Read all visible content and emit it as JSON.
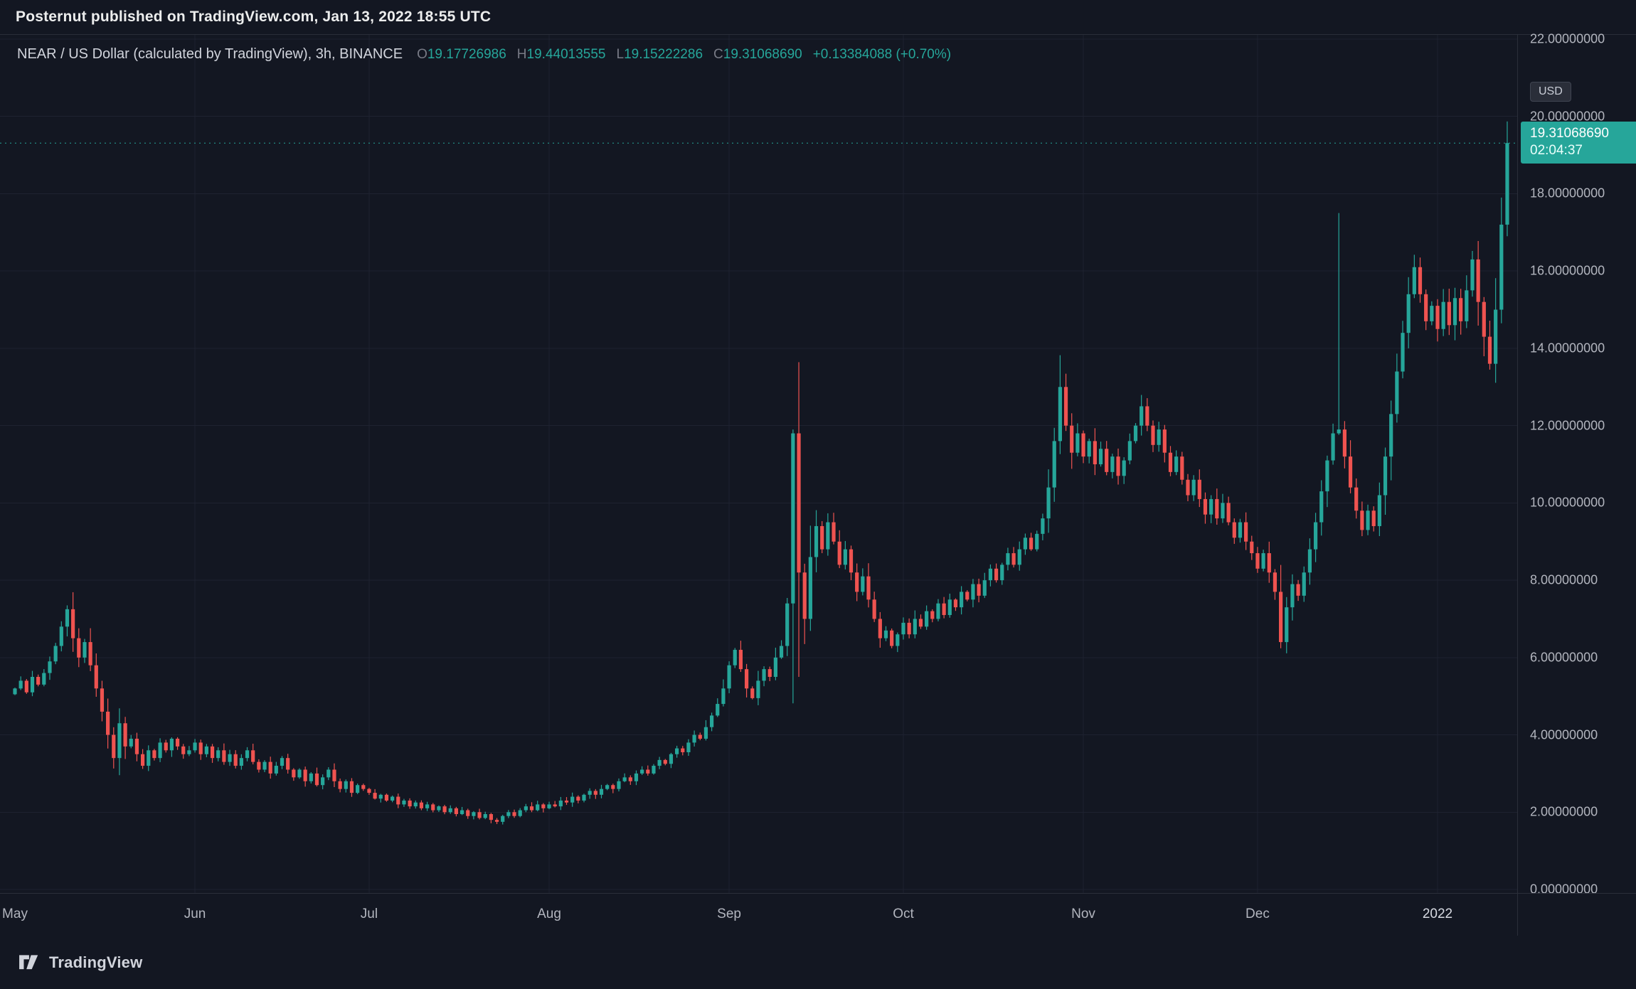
{
  "header": {
    "publish_text": "Posternut published on TradingView.com, Jan 13, 2022 18:55 UTC"
  },
  "chart": {
    "title": "NEAR / US Dollar (calculated by TradingView), 3h, BINANCE",
    "ohlc": {
      "o_label": "O",
      "o": "19.17726986",
      "h_label": "H",
      "h": "19.44013555",
      "l_label": "L",
      "l": "19.15222286",
      "c_label": "C",
      "c": "19.31068690",
      "change": "+0.13384088 (+0.70%)"
    },
    "price_axis": {
      "unit": "USD",
      "labels": [
        "22.00000000",
        "20.00000000",
        "18.00000000",
        "16.00000000",
        "14.00000000",
        "12.00000000",
        "10.00000000",
        "8.00000000",
        "6.00000000",
        "4.00000000",
        "2.00000000",
        "0.00000000"
      ]
    },
    "last_price": {
      "value": "19.31068690",
      "countdown": "02:04:37"
    }
  },
  "footer": {
    "brand": "TradingView"
  },
  "colors": {
    "up": "#26a69a",
    "down": "#ef5350",
    "grid": "#1e2230",
    "background": "#131722",
    "axis_text": "#b2b5be",
    "badge_bg": "#26a69a",
    "last_price_line": "#26a69a"
  },
  "chart_data": {
    "type": "candlestick",
    "symbol": "NEAR/USD",
    "interval": "3h",
    "exchange": "BINANCE",
    "title": "NEAR / US Dollar (calculated by TradingView)",
    "ylim": [
      0,
      22
    ],
    "x_unit": "days from 2021-05-01",
    "months": [
      {
        "label": "May",
        "day": 0
      },
      {
        "label": "Jun",
        "day": 31
      },
      {
        "label": "Jul",
        "day": 61
      },
      {
        "label": "Aug",
        "day": 92
      },
      {
        "label": "Sep",
        "day": 123
      },
      {
        "label": "Oct",
        "day": 153
      },
      {
        "label": "Nov",
        "day": 184
      },
      {
        "label": "Dec",
        "day": 214
      },
      {
        "label": "2022",
        "day": 245,
        "year": true
      }
    ],
    "first_open": 5.05,
    "last_close": 19.3107,
    "closes": [
      5.2,
      5.4,
      5.1,
      5.5,
      5.3,
      5.6,
      5.9,
      6.3,
      6.8,
      7.25,
      6.5,
      6.0,
      6.4,
      5.8,
      5.2,
      4.6,
      4.0,
      3.4,
      4.3,
      3.7,
      3.9,
      3.5,
      3.2,
      3.6,
      3.4,
      3.8,
      3.6,
      3.9,
      3.7,
      3.5,
      3.6,
      3.8,
      3.5,
      3.7,
      3.4,
      3.6,
      3.3,
      3.5,
      3.2,
      3.4,
      3.6,
      3.3,
      3.1,
      3.3,
      3.0,
      3.2,
      3.4,
      3.1,
      2.9,
      3.1,
      2.8,
      3.0,
      2.7,
      2.9,
      3.1,
      2.8,
      2.6,
      2.8,
      2.5,
      2.7,
      2.6,
      2.5,
      2.35,
      2.45,
      2.3,
      2.4,
      2.2,
      2.3,
      2.15,
      2.25,
      2.1,
      2.2,
      2.05,
      2.15,
      2.0,
      2.1,
      1.95,
      2.05,
      1.9,
      2.0,
      1.85,
      1.95,
      1.8,
      1.75,
      1.9,
      2.0,
      1.9,
      2.05,
      2.15,
      2.05,
      2.2,
      2.1,
      2.2,
      2.15,
      2.3,
      2.25,
      2.4,
      2.3,
      2.45,
      2.55,
      2.45,
      2.6,
      2.7,
      2.6,
      2.8,
      2.9,
      2.8,
      3.0,
      3.1,
      3.0,
      3.2,
      3.35,
      3.25,
      3.5,
      3.65,
      3.55,
      3.8,
      4.0,
      3.9,
      4.2,
      4.5,
      4.8,
      5.2,
      5.8,
      6.2,
      5.7,
      5.2,
      4.95,
      5.4,
      5.7,
      5.5,
      6.0,
      6.3,
      7.4,
      11.8,
      8.2,
      7.0,
      8.6,
      9.4,
      8.8,
      9.5,
      9.0,
      8.4,
      8.8,
      8.2,
      7.7,
      8.1,
      7.5,
      7.0,
      6.5,
      6.7,
      6.3,
      6.6,
      6.9,
      6.6,
      7.0,
      6.8,
      7.2,
      7.0,
      7.4,
      7.1,
      7.5,
      7.3,
      7.7,
      7.5,
      7.9,
      7.6,
      8.0,
      8.3,
      8.0,
      8.4,
      8.7,
      8.4,
      8.8,
      9.1,
      8.8,
      9.2,
      9.6,
      10.4,
      11.6,
      13.0,
      12.0,
      11.3,
      11.8,
      11.2,
      11.6,
      11.0,
      11.4,
      10.8,
      11.2,
      10.7,
      11.1,
      11.6,
      12.0,
      12.5,
      12.0,
      11.5,
      11.9,
      11.3,
      10.8,
      11.2,
      10.6,
      10.2,
      10.6,
      10.1,
      9.7,
      10.1,
      9.6,
      10.0,
      9.5,
      9.1,
      9.5,
      9.0,
      8.7,
      8.3,
      8.7,
      8.2,
      7.7,
      6.4,
      7.3,
      7.9,
      7.6,
      8.2,
      8.8,
      9.5,
      10.3,
      11.1,
      11.8,
      11.9,
      11.2,
      10.4,
      9.8,
      9.3,
      9.8,
      9.4,
      10.2,
      11.2,
      12.3,
      13.4,
      14.4,
      15.4,
      16.1,
      15.4,
      14.7,
      15.1,
      14.5,
      15.2,
      14.6,
      15.3,
      14.7,
      15.5,
      16.3,
      15.2,
      14.3,
      13.6,
      15.0,
      17.2,
      19.31
    ],
    "wick_overrides": {
      "9": {
        "high": 7.35
      },
      "134": {
        "high": 11.9
      },
      "135": {
        "low": 5.5
      },
      "228": {
        "high": 17.5
      },
      "256": {
        "high": 17.9
      },
      "257": {
        "high": 19.87,
        "low": 16.9
      }
    }
  }
}
